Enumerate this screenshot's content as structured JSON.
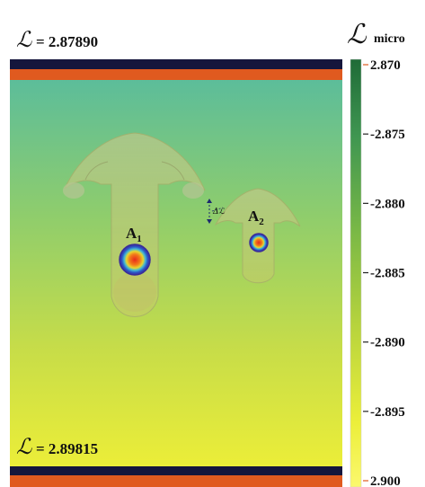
{
  "top_label": {
    "symbol": "ℒ",
    "text": "= 2.87890"
  },
  "bottom_label": {
    "symbol": "ℒ",
    "text": "= 2.89815"
  },
  "colorbar": {
    "title_symbol": "ℒ",
    "title_sub": "micro",
    "ticks": [
      "2.870",
      "-2.875",
      "-2.880",
      "-2.885",
      "-2.890",
      "-2.895",
      "2.900"
    ],
    "colors": [
      "#1f6b37",
      "#3f9651",
      "#79b846",
      "#b6d33d",
      "#ecef3a",
      "#fbf86d"
    ]
  },
  "field": {
    "colors": [
      "#5cbd9a",
      "#8fcd6c",
      "#c8dd48",
      "#ecee38"
    ]
  },
  "droplets": [
    {
      "label": "A",
      "sub": "1"
    },
    {
      "label": "A",
      "sub": "2"
    }
  ],
  "gap_label": {
    "symbol": "Δ",
    "sub": "ℒ"
  },
  "colors": {
    "band_dark": "#15163c",
    "band_orange": "#e05a1f"
  }
}
